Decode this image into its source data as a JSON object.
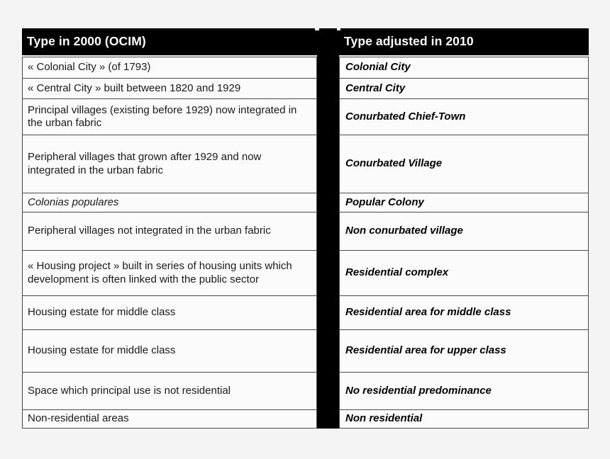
{
  "table": {
    "header": {
      "left": "Type in 2000 (OCIM)",
      "right": "Type adjusted in 2010"
    },
    "rows": [
      {
        "left": "« Colonial City » (of 1793)",
        "right": "Colonial City"
      },
      {
        "left": "« Central City » built between 1820 and 1929",
        "right": "Central City"
      },
      {
        "left": "Principal villages (existing before 1929) now integrated in the urban fabric",
        "right": "Conurbated Chief-Town"
      },
      {
        "left": "Peripheral villages that grown after 1929 and now integrated in the urban fabric",
        "right": "Conurbated Village"
      },
      {
        "left": "Colonias populares",
        "right": "Popular Colony",
        "left_italic": true
      },
      {
        "left": "Peripheral villages not integrated in the urban fabric",
        "right": "Non conurbated village"
      },
      {
        "left": "« Housing project » built in series of housing units which development is often linked with the public sector",
        "right": "Residential complex"
      },
      {
        "left": "Housing estate for middle class",
        "right": "Residential area for middle class"
      },
      {
        "left": "Housing estate for middle class",
        "right": "Residential area for upper class"
      },
      {
        "left": "Space which principal use is not residential",
        "right": "No residential predominance"
      },
      {
        "left": "Non-residential areas",
        "right": "Non residential"
      }
    ],
    "colors": {
      "page_bg": "#f4f4f4",
      "header_bg": "#000000",
      "header_text": "#ffffff",
      "cell_bg": "#fbfbfb",
      "cell_border": "#4a4a4a",
      "separator": "#000000",
      "left_text": "#1a1a1a",
      "right_text": "#000000"
    }
  }
}
